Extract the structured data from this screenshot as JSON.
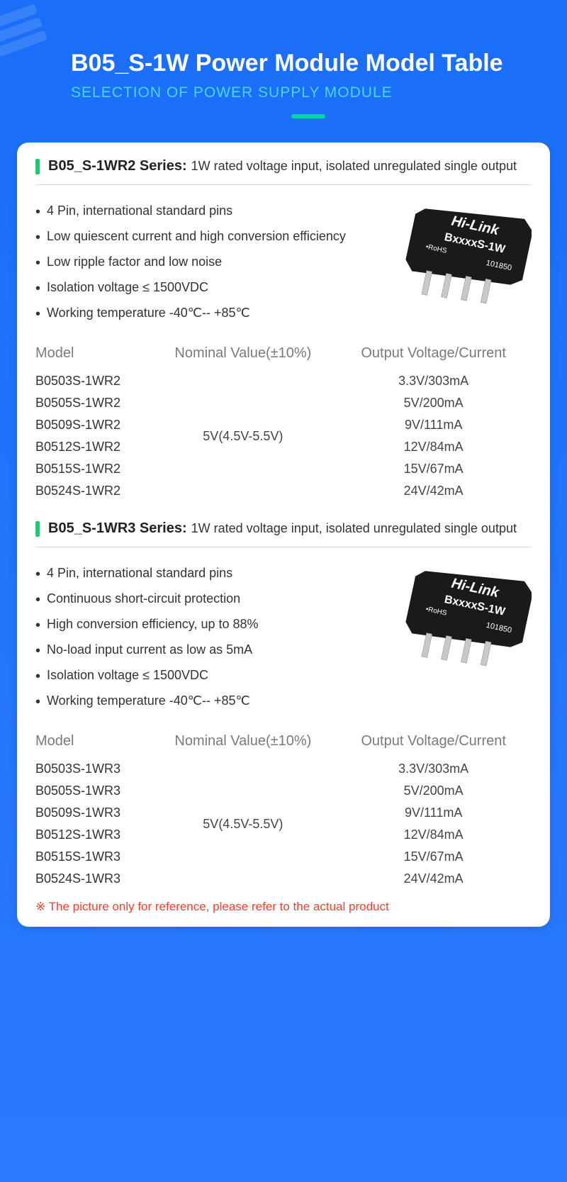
{
  "colors": {
    "page_bg_top": "#1a6ef7",
    "page_bg_bottom": "#2a7aff",
    "card_bg": "#ffffff",
    "title_color": "#ffffff",
    "subtitle_color": "#4fd4ff",
    "accent_bar": "#00d6a3",
    "series_bar": "#1fc96e",
    "text_primary": "#333333",
    "text_header": "#7a7a7a",
    "footnote": "#ff3b30",
    "chip_body": "#1a1a1a",
    "pin": "#c8c8c8"
  },
  "typography": {
    "main_title_size": 34,
    "subtitle_size": 21,
    "series_name_size": 20,
    "body_size": 18,
    "table_header_size": 20
  },
  "header": {
    "title": "B05_S-1W Power Module Model Table",
    "subtitle": "SELECTION OF POWER SUPPLY MODULE"
  },
  "chip_label": {
    "brand": "Hi-Link",
    "part": "BxxxxS-1W",
    "rohs": "•RoHS",
    "code": "101850"
  },
  "series1": {
    "name": "B05_S-1WR2 Series:",
    "desc": "1W rated voltage input, isolated unregulated single output",
    "features": [
      "4 Pin, international standard pins",
      "Low quiescent current and high conversion efficiency",
      "Low ripple factor and low noise",
      "Isolation voltage ≤ 1500VDC",
      "Working temperature -40℃-- +85℃"
    ],
    "table": {
      "headers": [
        "Model",
        "Nominal Value(±10%)",
        "Output Voltage/Current"
      ],
      "nominal": "5V(4.5V-5.5V)",
      "rows": [
        {
          "model": "B0503S-1WR2",
          "output": "3.3V/303mA"
        },
        {
          "model": "B0505S-1WR2",
          "output": "5V/200mA"
        },
        {
          "model": "B0509S-1WR2",
          "output": "9V/111mA"
        },
        {
          "model": "B0512S-1WR2",
          "output": "12V/84mA"
        },
        {
          "model": "B0515S-1WR2",
          "output": "15V/67mA"
        },
        {
          "model": "B0524S-1WR2",
          "output": "24V/42mA"
        }
      ]
    }
  },
  "series2": {
    "name": "B05_S-1WR3 Series:",
    "desc": "1W rated voltage input, isolated unregulated single output",
    "features": [
      "4 Pin, international standard pins",
      "Continuous short-circuit protection",
      "High conversion efficiency, up to 88%",
      "No-load input current as low as 5mA",
      "Isolation voltage ≤ 1500VDC",
      "Working temperature -40℃-- +85℃"
    ],
    "table": {
      "headers": [
        "Model",
        "Nominal Value(±10%)",
        "Output Voltage/Current"
      ],
      "nominal": "5V(4.5V-5.5V)",
      "rows": [
        {
          "model": "B0503S-1WR3",
          "output": "3.3V/303mA"
        },
        {
          "model": "B0505S-1WR3",
          "output": "5V/200mA"
        },
        {
          "model": "B0509S-1WR3",
          "output": "9V/111mA"
        },
        {
          "model": "B0512S-1WR3",
          "output": "12V/84mA"
        },
        {
          "model": "B0515S-1WR3",
          "output": "15V/67mA"
        },
        {
          "model": "B0524S-1WR3",
          "output": "24V/42mA"
        }
      ]
    }
  },
  "footnote": "※ The picture only for reference, please refer to the actual product"
}
